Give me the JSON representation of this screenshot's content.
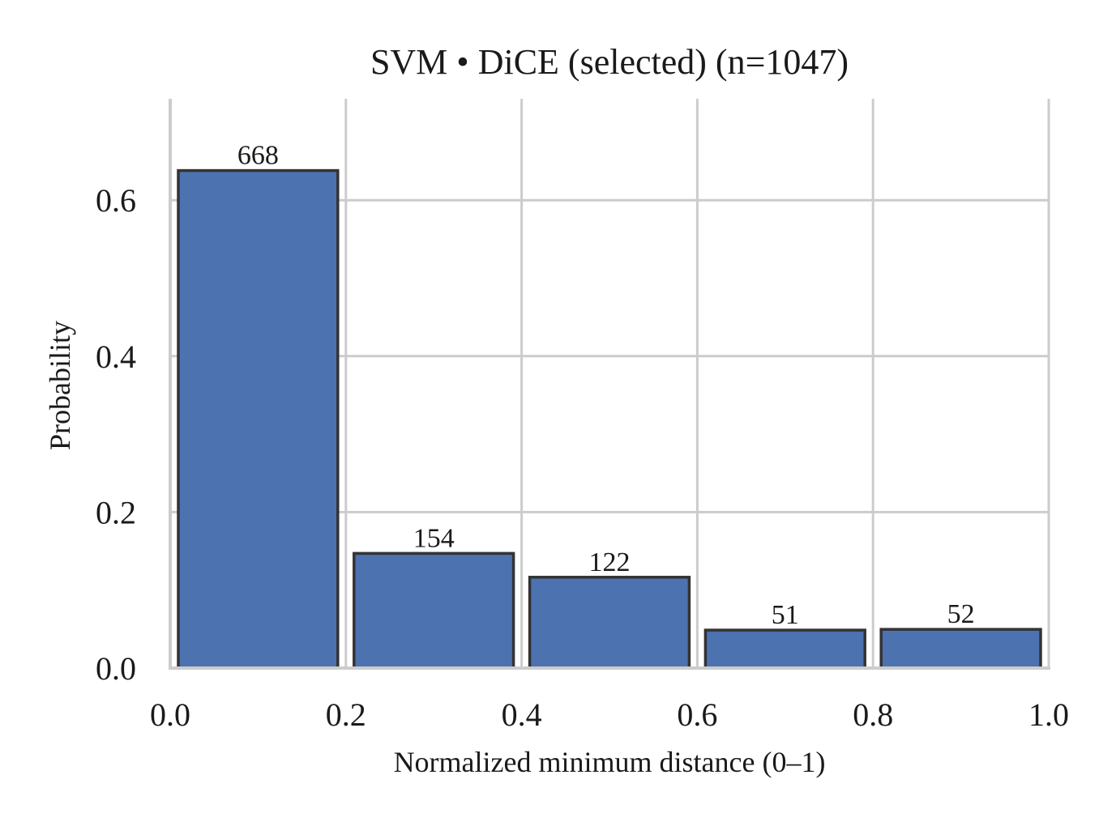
{
  "chart_data": {
    "type": "bar",
    "title": "SVM • DiCE (selected)  (n=1047)",
    "xlabel": "Normalized minimum distance (0–1)",
    "ylabel": "Probability",
    "xlim": [
      0.0,
      1.0
    ],
    "ylim": [
      0.0,
      0.73
    ],
    "xticks": [
      "0.0",
      "0.2",
      "0.4",
      "0.6",
      "0.8",
      "1.0"
    ],
    "yticks": [
      "0.0",
      "0.2",
      "0.4",
      "0.6"
    ],
    "grid": true,
    "bar_color": "#4c72b0",
    "bins": [
      {
        "start": 0.0,
        "end": 0.2,
        "count": 668,
        "label": "668"
      },
      {
        "start": 0.2,
        "end": 0.4,
        "count": 154,
        "label": "154"
      },
      {
        "start": 0.4,
        "end": 0.6,
        "count": 122,
        "label": "122"
      },
      {
        "start": 0.6,
        "end": 0.8,
        "count": 51,
        "label": "51"
      },
      {
        "start": 0.8,
        "end": 1.0,
        "count": 52,
        "label": "52"
      }
    ],
    "total": 1047
  }
}
